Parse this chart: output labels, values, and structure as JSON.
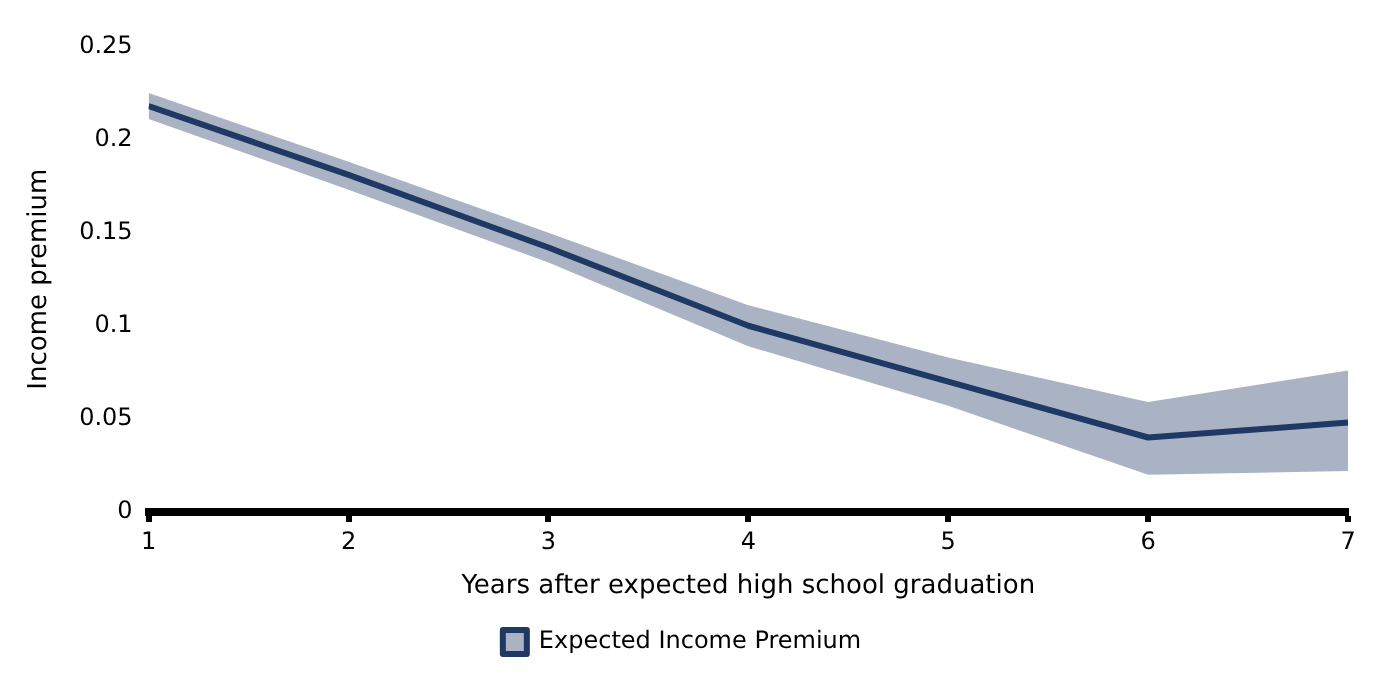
{
  "chart_data": {
    "type": "line",
    "xlabel": "Years after expected high school graduation",
    "ylabel": "Income premium",
    "x": [
      1,
      2,
      3,
      4,
      5,
      6,
      7
    ],
    "series": [
      {
        "name": "Expected Income Premium",
        "color": "#1f3864",
        "values": [
          0.218,
          0.181,
          0.142,
          0.1,
          0.07,
          0.04,
          0.048
        ],
        "lower": [
          0.211,
          0.173,
          0.134,
          0.089,
          0.057,
          0.02,
          0.022
        ],
        "upper": [
          0.225,
          0.188,
          0.15,
          0.111,
          0.083,
          0.059,
          0.076
        ]
      }
    ],
    "xlim": [
      1,
      7
    ],
    "xticks": [
      1,
      2,
      3,
      4,
      5,
      6,
      7
    ],
    "ylim": [
      0,
      0.25
    ],
    "yticks": [
      0,
      0.05,
      0.1,
      0.15,
      0.2,
      0.25
    ],
    "grid": false,
    "legend": "bottom",
    "marker": "none",
    "line_style": "solid"
  }
}
